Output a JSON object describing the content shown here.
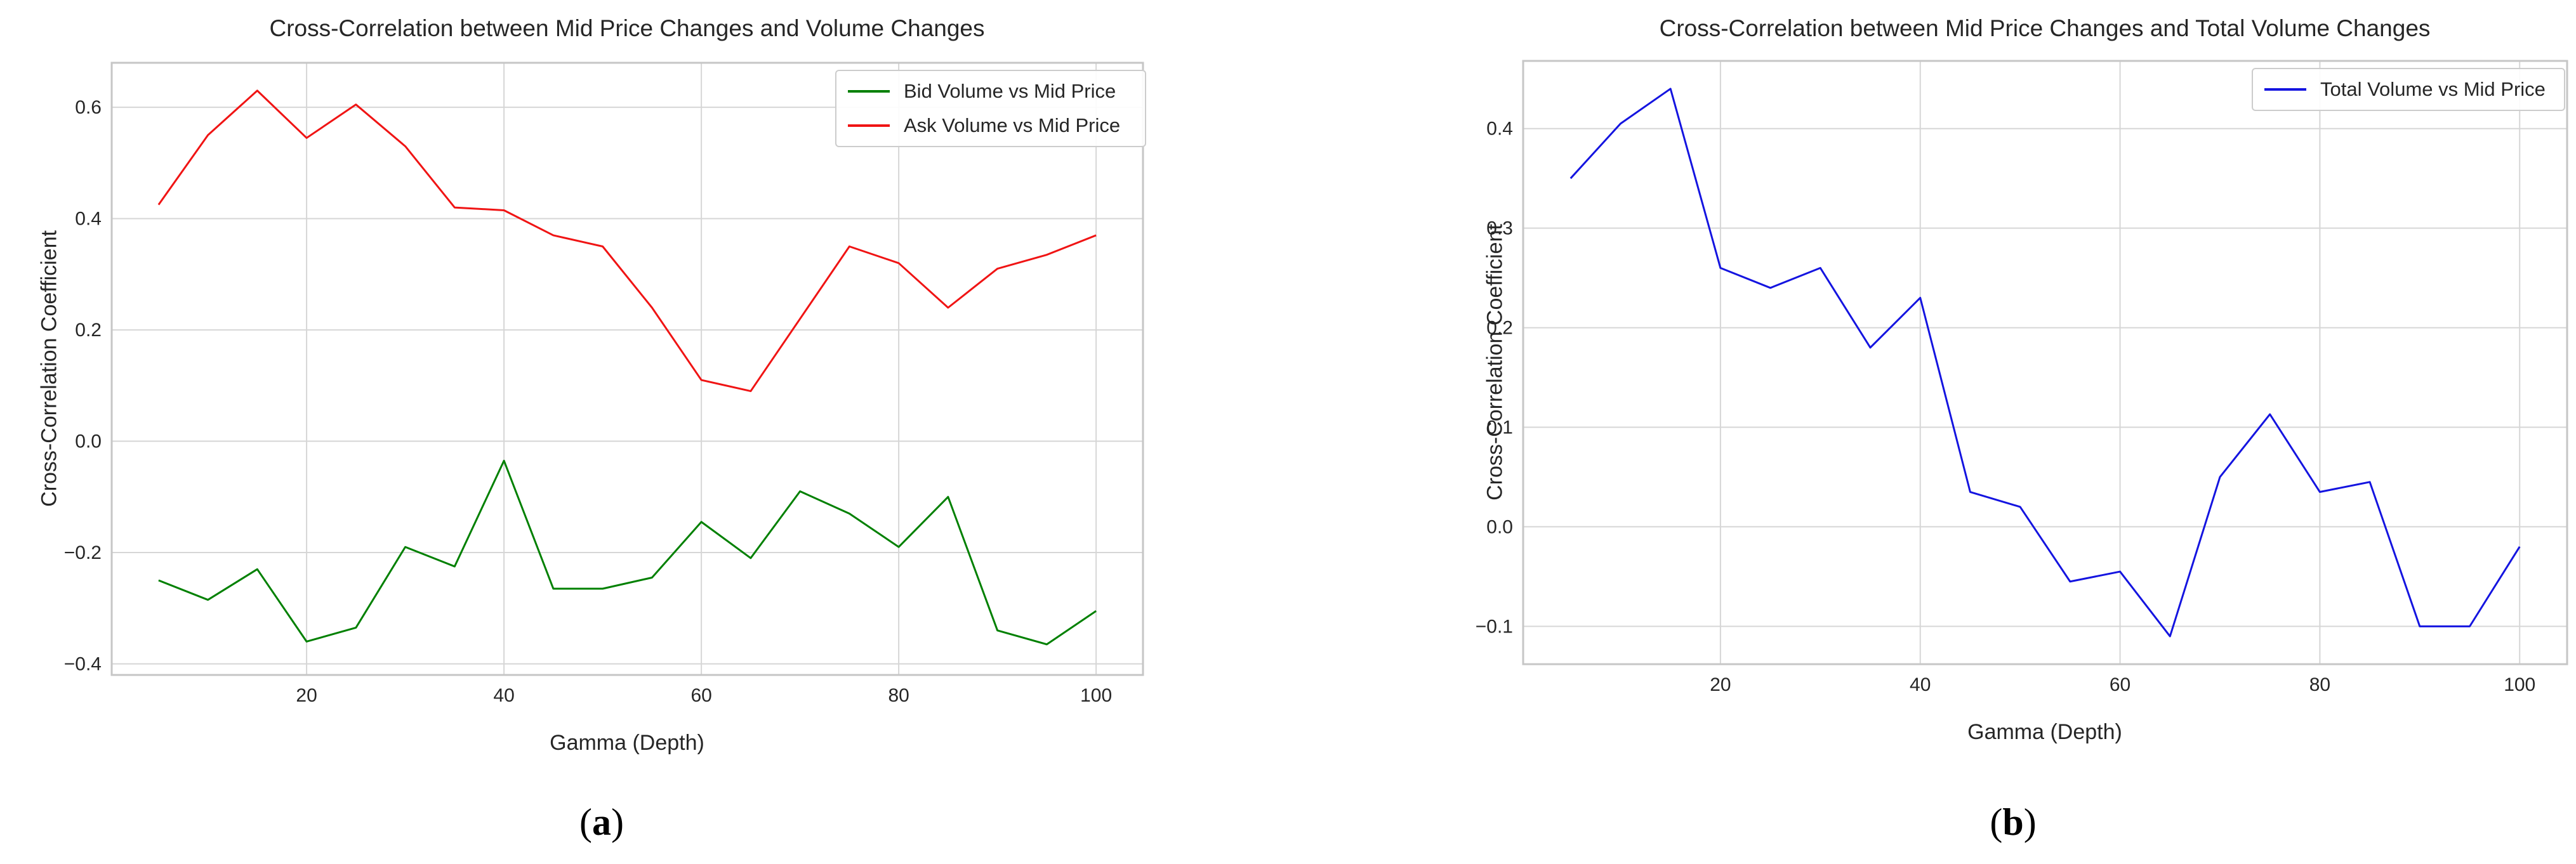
{
  "captions": {
    "open": "(",
    "close": ")",
    "a": "a",
    "b": "b"
  },
  "chart_data": [
    {
      "type": "line",
      "title": "Cross-Correlation between Mid Price Changes and Volume Changes",
      "xlabel": "Gamma (Depth)",
      "ylabel": "Cross-Correlation Coefficient",
      "legend_position": "upper right",
      "grid": true,
      "x": [
        5,
        10,
        15,
        20,
        25,
        30,
        35,
        40,
        45,
        50,
        55,
        60,
        65,
        70,
        75,
        80,
        85,
        90,
        95,
        100
      ],
      "series": [
        {
          "name": "Bid Volume vs Mid Price",
          "color": "#008000",
          "values": [
            -0.25,
            -0.285,
            -0.23,
            -0.36,
            -0.335,
            -0.19,
            -0.225,
            -0.035,
            -0.265,
            -0.265,
            -0.245,
            -0.145,
            -0.21,
            -0.09,
            -0.13,
            -0.19,
            -0.1,
            -0.34,
            -0.365,
            -0.305
          ]
        },
        {
          "name": "Ask Volume vs Mid Price",
          "color": "#f01414",
          "values": [
            0.425,
            0.55,
            0.63,
            0.545,
            0.605,
            0.53,
            0.42,
            0.415,
            0.37,
            0.35,
            0.24,
            0.11,
            0.09,
            0.22,
            0.35,
            0.32,
            0.24,
            0.31,
            0.335,
            0.37
          ]
        }
      ],
      "axes": {
        "xlim": [
          0.25,
          104.75
        ],
        "ylim": [
          -0.42,
          0.68
        ],
        "xticks": [
          20,
          40,
          60,
          80,
          100
        ],
        "xtick_labels": [
          "20",
          "40",
          "60",
          "80",
          "100"
        ],
        "yticks": [
          0.6,
          0.4,
          0.2,
          0.0,
          -0.2,
          -0.4
        ],
        "ytick_labels": [
          "0.6",
          "0.4",
          "0.2",
          "0.0",
          "−0.2",
          "−0.4"
        ]
      }
    },
    {
      "type": "line",
      "title": "Cross-Correlation between Mid Price Changes and Total Volume Changes",
      "xlabel": "Gamma (Depth)",
      "ylabel": "Cross-Correlation Coefficient",
      "legend_position": "upper right",
      "grid": true,
      "x": [
        5,
        10,
        15,
        20,
        25,
        30,
        35,
        40,
        45,
        50,
        55,
        60,
        65,
        70,
        75,
        80,
        85,
        90,
        95,
        100
      ],
      "series": [
        {
          "name": "Total Volume vs Mid Price",
          "color": "#1414e0",
          "values": [
            0.35,
            0.405,
            0.44,
            0.26,
            0.24,
            0.26,
            0.18,
            0.23,
            0.035,
            0.02,
            -0.055,
            -0.045,
            -0.11,
            0.05,
            0.113,
            0.035,
            0.045,
            -0.1,
            -0.1,
            -0.02
          ]
        }
      ],
      "axes": {
        "xlim": [
          0.25,
          104.75
        ],
        "ylim": [
          -0.138,
          0.468
        ],
        "xticks": [
          20,
          40,
          60,
          80,
          100
        ],
        "xtick_labels": [
          "20",
          "40",
          "60",
          "80",
          "100"
        ],
        "yticks": [
          0.4,
          0.3,
          0.2,
          0.1,
          0.0,
          -0.1
        ],
        "ytick_labels": [
          "0.4",
          "0.3",
          "0.2",
          "0.1",
          "0.0",
          "−0.1"
        ]
      }
    }
  ],
  "style": {
    "gridline_color": "#d6d6d6",
    "spine_color": "#c6c6c6",
    "text_color": "#262626",
    "tick_fontsize": 30
  }
}
